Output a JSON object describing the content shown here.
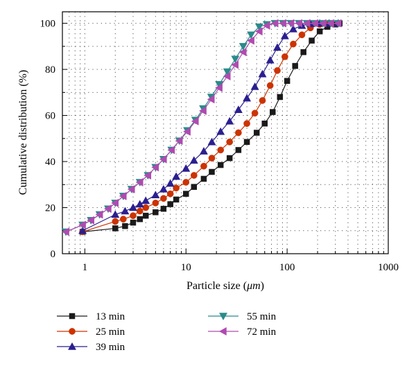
{
  "chart_data": {
    "type": "line",
    "title": "",
    "xlabel": "Particle size (",
    "xlabel_unit": "μm",
    "xlabel_close": ")",
    "ylabel": "Cumulative distribution (%)",
    "xscale": "log",
    "xlim": [
      0.6,
      1000
    ],
    "ylim": [
      0,
      105
    ],
    "xticks": [
      1,
      10,
      100,
      1000
    ],
    "xtick_labels": [
      "1",
      "10",
      "100",
      "1000"
    ],
    "yticks": [
      0,
      20,
      40,
      60,
      80,
      100
    ],
    "ytick_labels": [
      "0",
      "20",
      "40",
      "60",
      "80",
      "100"
    ],
    "grid": "dotted",
    "legend_position": "bottom",
    "series": [
      {
        "name": "13 min",
        "color": "#1a1a1a",
        "marker": "square",
        "x": [
          0.95,
          2,
          2.5,
          3,
          3.5,
          4,
          5,
          6,
          7,
          8,
          10,
          12,
          15,
          18,
          22,
          27,
          33,
          40,
          50,
          60,
          72,
          85,
          100,
          120,
          145,
          175,
          210,
          250,
          300,
          330
        ],
        "y": [
          9.5,
          11,
          12,
          13.5,
          15,
          16.5,
          18,
          19.5,
          21.5,
          23.5,
          26,
          29,
          32.5,
          35.5,
          38.5,
          41.5,
          45,
          48.5,
          52.5,
          56.5,
          61.5,
          68,
          75,
          81.5,
          87.5,
          92.5,
          96.5,
          98.5,
          99.5,
          100
        ]
      },
      {
        "name": "25 min",
        "color": "#cc3300",
        "marker": "circle",
        "x": [
          0.95,
          2,
          2.4,
          3,
          3.5,
          4,
          5,
          6,
          7,
          8,
          10,
          12,
          15,
          18,
          22,
          27,
          33,
          40,
          48,
          57,
          68,
          80,
          95,
          115,
          140,
          170,
          210,
          260,
          320
        ],
        "y": [
          9.5,
          14,
          15,
          16.5,
          18.5,
          20,
          22,
          24,
          26,
          28.5,
          31,
          34,
          38,
          41.5,
          45,
          48.5,
          52.5,
          56.5,
          61,
          66.5,
          73,
          79.5,
          85.5,
          91,
          95,
          98,
          99.5,
          100,
          100
        ]
      },
      {
        "name": "39 min",
        "color": "#2b1f8f",
        "marker": "triangle-up",
        "x": [
          0.95,
          2,
          2.5,
          3,
          3.5,
          4,
          5,
          6,
          7,
          8,
          10,
          12,
          15,
          18,
          22,
          27,
          33,
          40,
          48,
          57,
          68,
          80,
          95,
          115,
          140,
          170,
          210,
          260,
          320
        ],
        "y": [
          10,
          17,
          18.5,
          20,
          21.5,
          23,
          25.5,
          28,
          30.5,
          33.5,
          37,
          40.5,
          44.5,
          48.5,
          53,
          57.5,
          62.5,
          67.5,
          72.5,
          78,
          84,
          89.5,
          94.5,
          97.5,
          99,
          99.8,
          100,
          100,
          100
        ]
      },
      {
        "name": "55 min",
        "color": "#2a8a8a",
        "marker": "triangle-down",
        "x": [
          0.65,
          0.95,
          1.15,
          1.4,
          1.7,
          2,
          2.4,
          2.9,
          3.5,
          4.2,
          5,
          6,
          7.2,
          8.6,
          10.3,
          12.4,
          14.8,
          17.8,
          21.3,
          25.6,
          30.7,
          36.8,
          44,
          53,
          63,
          76,
          91,
          109,
          131,
          157,
          188,
          226,
          270,
          320
        ],
        "y": [
          9.5,
          12.5,
          14.5,
          17,
          19.5,
          22,
          25,
          28,
          31,
          34,
          37.5,
          41,
          45,
          49,
          53.5,
          58,
          63,
          68,
          73.5,
          79,
          84.5,
          90,
          95,
          98.5,
          99.5,
          100,
          100,
          100,
          100,
          100,
          100,
          100,
          100,
          100
        ]
      },
      {
        "name": "72 min",
        "color": "#b04ab0",
        "marker": "triangle-left",
        "x": [
          0.65,
          0.95,
          1.15,
          1.4,
          1.7,
          2,
          2.4,
          2.9,
          3.5,
          4.2,
          5,
          6,
          7.2,
          8.6,
          10.3,
          12.4,
          14.8,
          17.8,
          21.3,
          25.6,
          30.7,
          36.8,
          44,
          53,
          63,
          76,
          91,
          109,
          131,
          157,
          188,
          226,
          270,
          320
        ],
        "y": [
          9.5,
          12.5,
          14.5,
          17,
          19.5,
          22,
          25,
          28,
          31,
          34,
          37.5,
          41,
          45,
          49,
          53,
          57.5,
          62,
          67,
          72,
          77,
          82,
          87.5,
          92.5,
          96.5,
          99,
          100,
          100,
          100,
          100,
          100,
          100,
          100,
          100,
          100
        ]
      }
    ]
  }
}
